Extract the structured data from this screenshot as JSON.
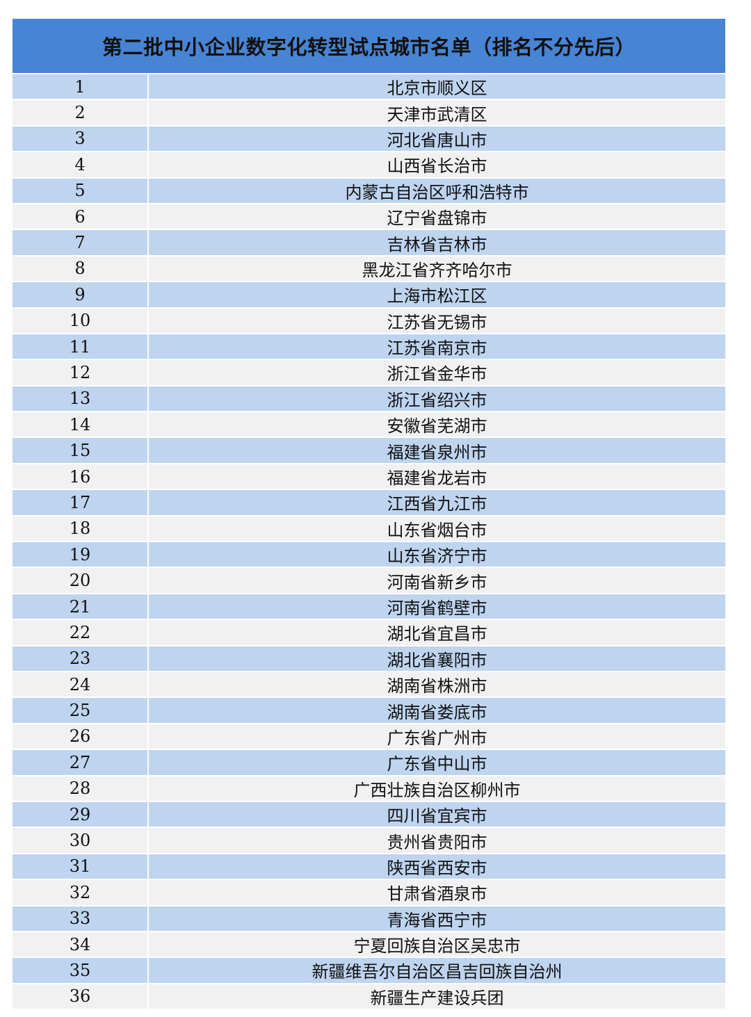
{
  "title": "第二批中小企业数字化转型试点城市名单（排名不分先后）",
  "rows": [
    {
      "no": "1",
      "city": "北京市顺义区"
    },
    {
      "no": "2",
      "city": "天津市武清区"
    },
    {
      "no": "3",
      "city": "河北省唐山市"
    },
    {
      "no": "4",
      "city": "山西省长治市"
    },
    {
      "no": "5",
      "city": "内蒙古自治区呼和浩特市"
    },
    {
      "no": "6",
      "city": "辽宁省盘锦市"
    },
    {
      "no": "7",
      "city": "吉林省吉林市"
    },
    {
      "no": "8",
      "city": "黑龙江省齐齐哈尔市"
    },
    {
      "no": "9",
      "city": "上海市松江区"
    },
    {
      "no": "10",
      "city": "江苏省无锡市"
    },
    {
      "no": "11",
      "city": "江苏省南京市"
    },
    {
      "no": "12",
      "city": "浙江省金华市"
    },
    {
      "no": "13",
      "city": "浙江省绍兴市"
    },
    {
      "no": "14",
      "city": "安徽省芜湖市"
    },
    {
      "no": "15",
      "city": "福建省泉州市"
    },
    {
      "no": "16",
      "city": "福建省龙岩市"
    },
    {
      "no": "17",
      "city": "江西省九江市"
    },
    {
      "no": "18",
      "city": "山东省烟台市"
    },
    {
      "no": "19",
      "city": "山东省济宁市"
    },
    {
      "no": "20",
      "city": "河南省新乡市"
    },
    {
      "no": "21",
      "city": "河南省鹤壁市"
    },
    {
      "no": "22",
      "city": "湖北省宜昌市"
    },
    {
      "no": "23",
      "city": "湖北省襄阳市"
    },
    {
      "no": "24",
      "city": "湖南省株洲市"
    },
    {
      "no": "25",
      "city": "湖南省娄底市"
    },
    {
      "no": "26",
      "city": "广东省广州市"
    },
    {
      "no": "27",
      "city": "广东省中山市"
    },
    {
      "no": "28",
      "city": "广西壮族自治区柳州市"
    },
    {
      "no": "29",
      "city": "四川省宜宾市"
    },
    {
      "no": "30",
      "city": "贵州省贵阳市"
    },
    {
      "no": "31",
      "city": "陕西省西安市"
    },
    {
      "no": "32",
      "city": "甘肃省酒泉市"
    },
    {
      "no": "33",
      "city": "青海省西宁市"
    },
    {
      "no": "34",
      "city": "宁夏回族自治区吴忠市"
    },
    {
      "no": "35",
      "city": "新疆维吾尔自治区昌吉回族自治州"
    },
    {
      "no": "36",
      "city": "新疆生产建设兵团"
    }
  ],
  "colors": {
    "header": "#4784d3",
    "row_odd": "#bed4ef",
    "row_even": "#f1f1f1"
  }
}
